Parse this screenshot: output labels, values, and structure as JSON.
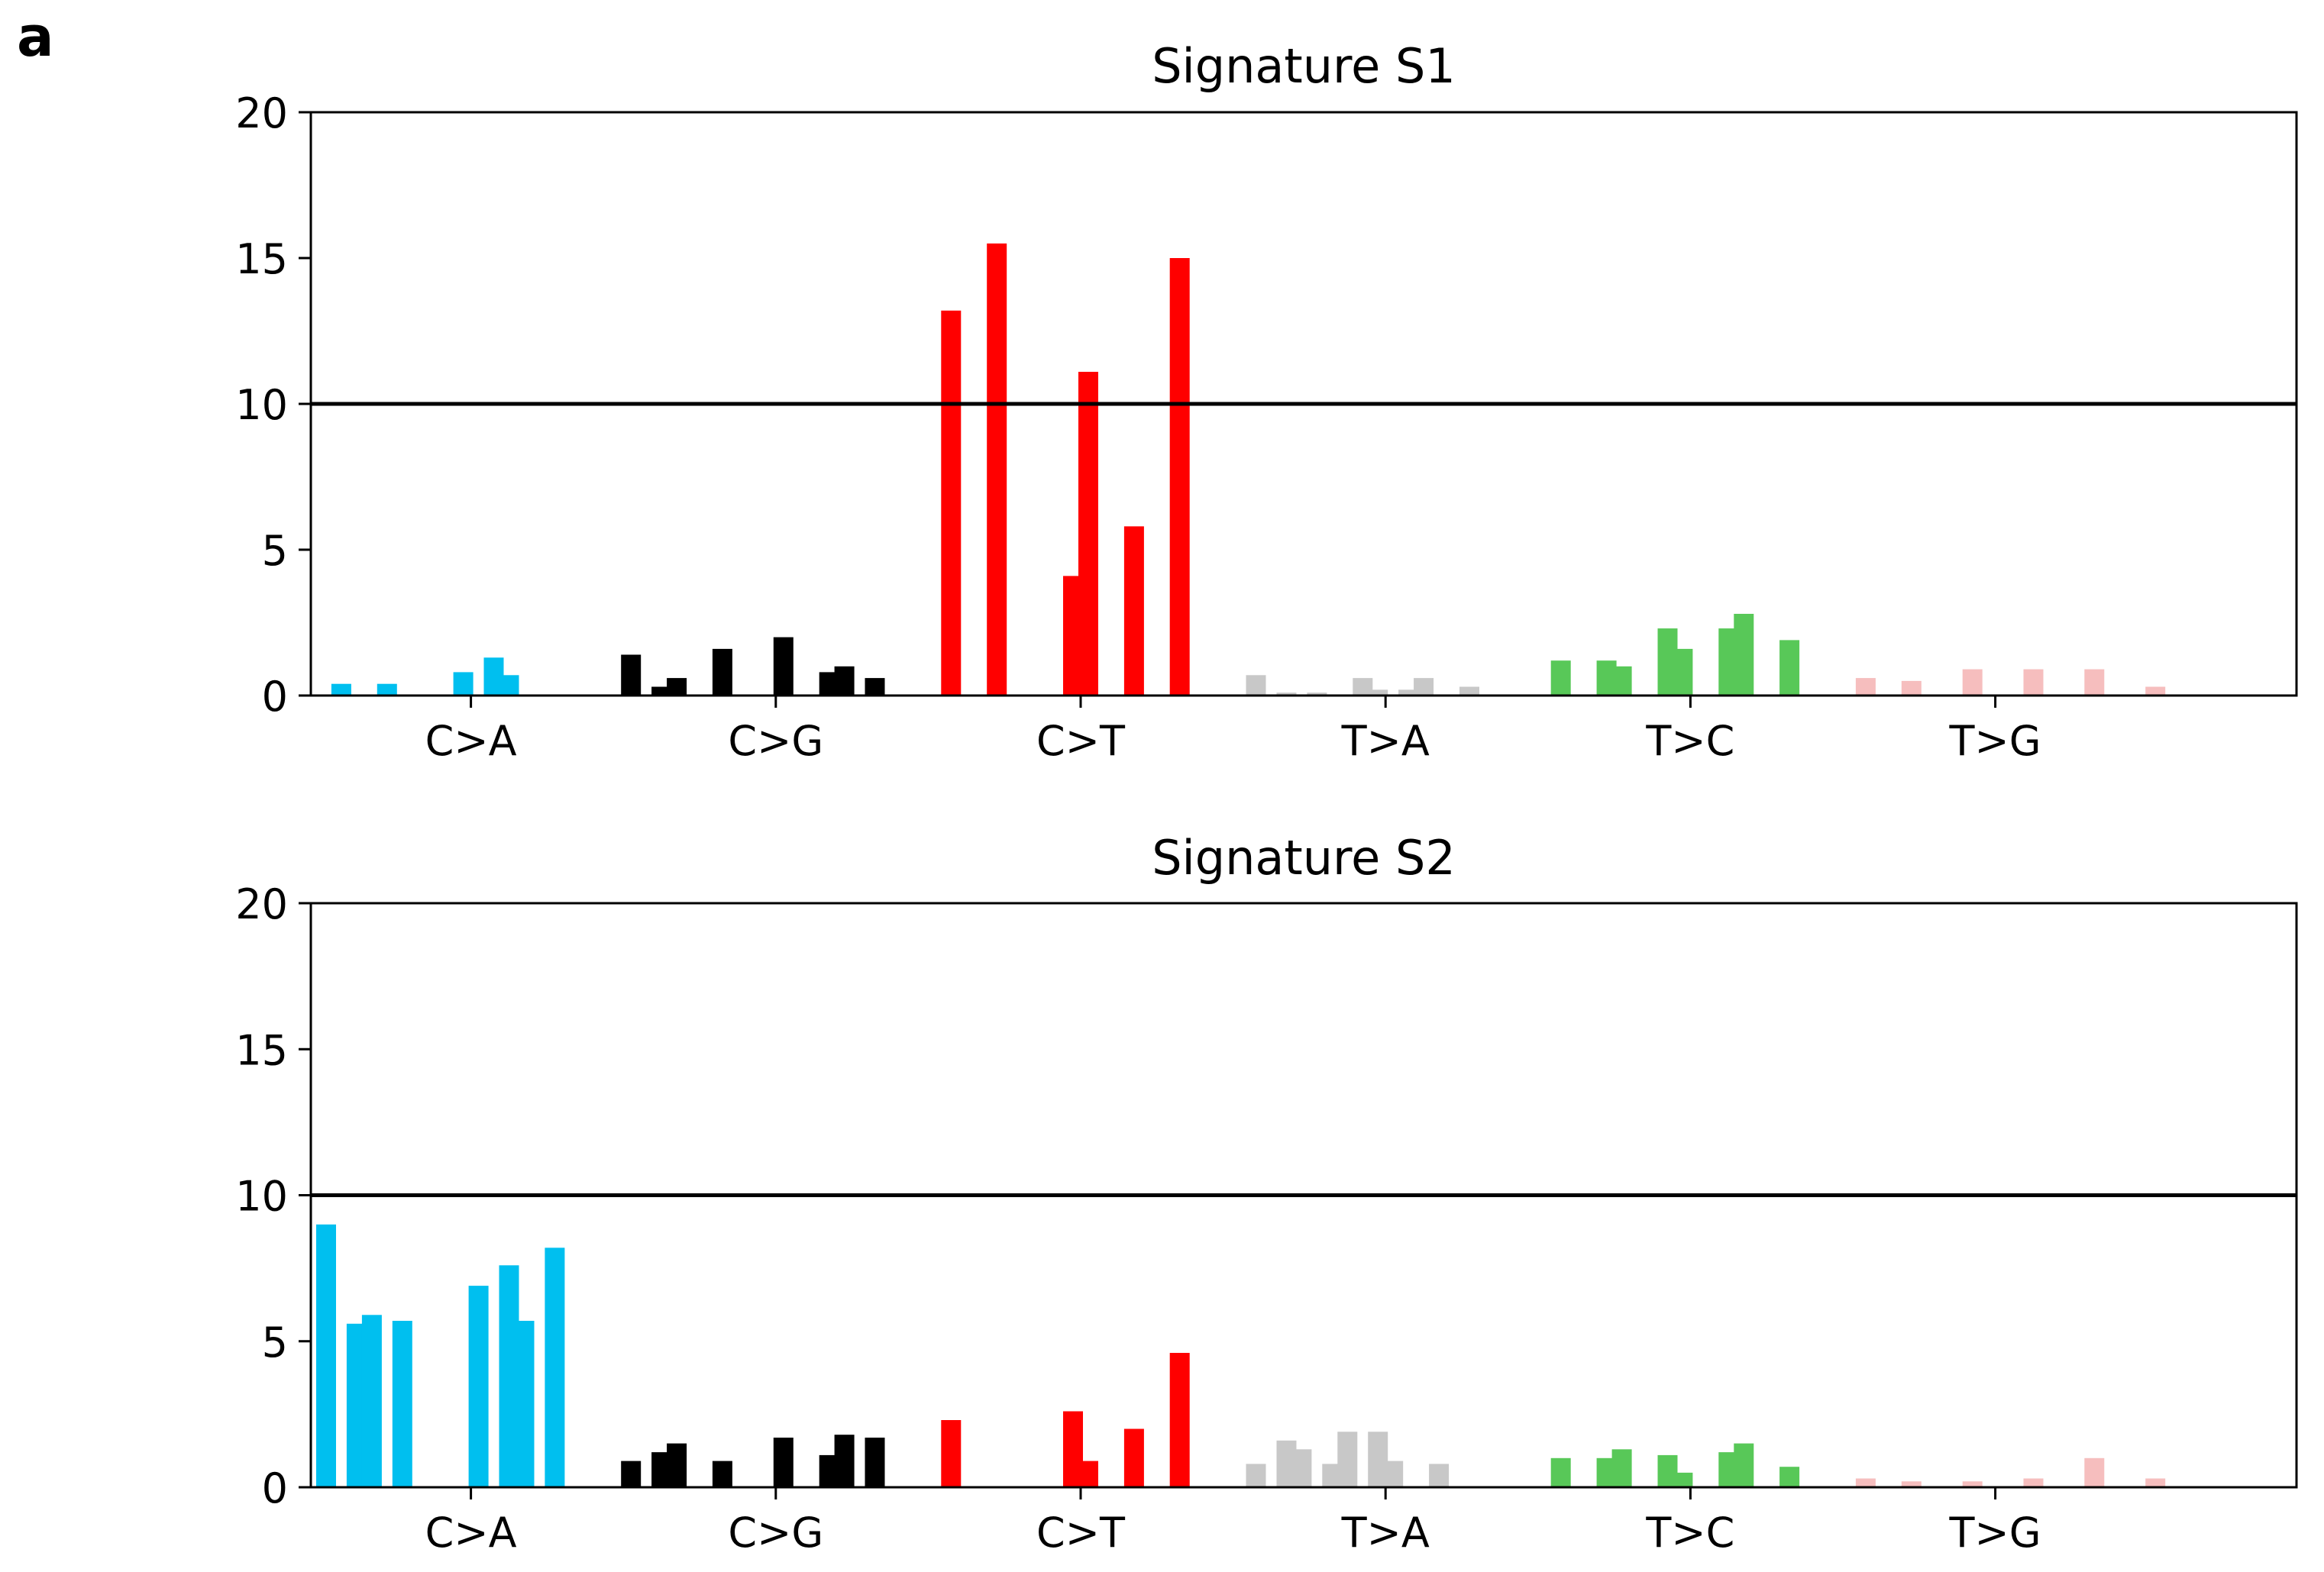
{
  "panel_label": "a",
  "colors": {
    "C>A": "#00BFEF",
    "C>G": "#000000",
    "C>T": "#FF0000",
    "T>A": "#C8C8C8",
    "T>C": "#58C858",
    "T>G": "#F6BEBE",
    "threshold_line": "#000000"
  },
  "chart_data": [
    {
      "type": "bar",
      "title": "Signature S1",
      "xlabel": "",
      "ylabel": "",
      "ylim": [
        0,
        20
      ],
      "yticks": [
        0,
        5,
        10,
        15,
        20
      ],
      "threshold": 10,
      "groups": [
        "C>A",
        "C>G",
        "C>T",
        "T>A",
        "T>C",
        "T>G"
      ],
      "series": [
        {
          "group": "C>A",
          "values": [
            0,
            0.4,
            0,
            0,
            0.4,
            0,
            0,
            0,
            0,
            0.8,
            0,
            1.3,
            0.7,
            0,
            0,
            0
          ]
        },
        {
          "group": "C>G",
          "values": [
            1.4,
            0,
            0.3,
            0.6,
            0,
            0,
            1.6,
            0,
            0,
            0,
            2.0,
            0,
            0,
            0.8,
            1.0,
            0,
            0.6
          ]
        },
        {
          "group": "C>T",
          "values": [
            0,
            13.2,
            0,
            0,
            15.5,
            0,
            0,
            0,
            0,
            4.1,
            11.1,
            0,
            0,
            5.8,
            0,
            0,
            15.0
          ]
        },
        {
          "group": "T>A",
          "values": [
            0,
            0.7,
            0,
            0.1,
            0,
            0.1,
            0,
            0,
            0.6,
            0.2,
            0,
            0.2,
            0.6,
            0,
            0,
            0.3
          ]
        },
        {
          "group": "T>C",
          "values": [
            0,
            1.2,
            0,
            0,
            1.2,
            1.0,
            0,
            0,
            2.3,
            1.6,
            0,
            0,
            2.3,
            2.8,
            0,
            0,
            1.9
          ]
        },
        {
          "group": "T>G",
          "values": [
            0,
            0.6,
            0,
            0,
            0.5,
            0,
            0,
            0,
            0.9,
            0,
            0,
            0,
            0.9,
            0,
            0,
            0,
            0.9,
            0,
            0,
            0,
            0.3
          ]
        }
      ]
    },
    {
      "type": "bar",
      "title": "Signature S2",
      "xlabel": "",
      "ylabel": "",
      "ylim": [
        0,
        20
      ],
      "yticks": [
        0,
        5,
        10,
        15,
        20
      ],
      "threshold": 10,
      "groups": [
        "C>A",
        "C>G",
        "C>T",
        "T>A",
        "T>C",
        "T>G"
      ],
      "series": [
        {
          "group": "C>A",
          "values": [
            9.0,
            0,
            5.6,
            5.9,
            0,
            5.7,
            0,
            0,
            0,
            0,
            6.9,
            0,
            7.6,
            5.7,
            0,
            8.2
          ]
        },
        {
          "group": "C>G",
          "values": [
            0.9,
            0,
            1.2,
            1.5,
            0,
            0,
            0.9,
            0,
            0,
            0,
            1.7,
            0,
            0,
            1.1,
            1.8,
            0,
            1.7
          ]
        },
        {
          "group": "C>T",
          "values": [
            0,
            2.3,
            0,
            0,
            0,
            0,
            0,
            0,
            0,
            2.6,
            0.9,
            0,
            0,
            2.0,
            0,
            0,
            4.6
          ]
        },
        {
          "group": "T>A",
          "values": [
            0,
            0.8,
            0,
            1.6,
            1.3,
            0,
            0.8,
            1.9,
            0,
            1.9,
            0.9,
            0,
            0,
            0.8
          ]
        },
        {
          "group": "T>C",
          "values": [
            0,
            1.0,
            0,
            0,
            1.0,
            1.3,
            0,
            0,
            1.1,
            0.5,
            0,
            0,
            1.2,
            1.5,
            0,
            0,
            0.7
          ]
        },
        {
          "group": "T>G",
          "values": [
            0,
            0.3,
            0,
            0,
            0.2,
            0,
            0,
            0,
            0.2,
            0,
            0,
            0,
            0.3,
            0,
            0,
            0,
            1.0,
            0,
            0,
            0,
            0.3
          ]
        }
      ]
    }
  ]
}
